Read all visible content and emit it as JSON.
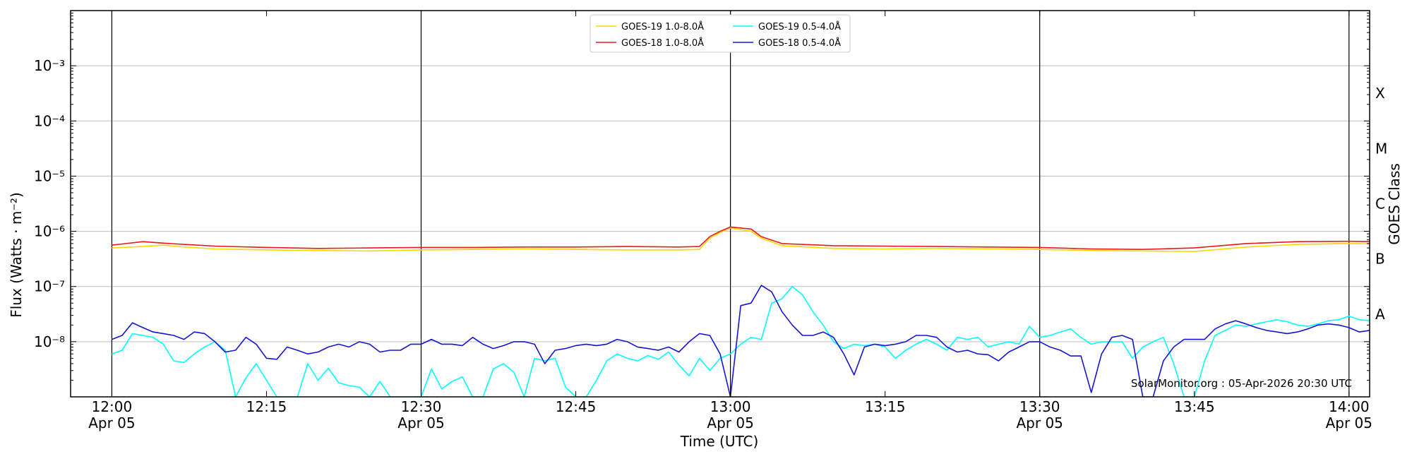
{
  "chart_data": {
    "type": "line",
    "xlabel": "Time (UTC)",
    "ylabel": "Flux (Watts · m⁻²)",
    "ylabel_right": "GOES Class",
    "yscale": "log",
    "xlim": [
      "2026-04-05 11:56",
      "2026-04-05 14:02"
    ],
    "ylim": [
      1e-09,
      0.01
    ],
    "x_ticks": [
      {
        "time": "12:00",
        "label": "12:00",
        "sublabel": "Apr 05",
        "major": true
      },
      {
        "time": "12:15",
        "label": "12:15",
        "sublabel": "",
        "major": false
      },
      {
        "time": "12:30",
        "label": "12:30",
        "sublabel": "Apr 05",
        "major": true
      },
      {
        "time": "12:45",
        "label": "12:45",
        "sublabel": "",
        "major": false
      },
      {
        "time": "13:00",
        "label": "13:00",
        "sublabel": "Apr 05",
        "major": true
      },
      {
        "time": "13:15",
        "label": "13:15",
        "sublabel": "",
        "major": false
      },
      {
        "time": "13:30",
        "label": "13:30",
        "sublabel": "Apr 05",
        "major": true
      },
      {
        "time": "13:45",
        "label": "13:45",
        "sublabel": "",
        "major": false
      },
      {
        "time": "14:00",
        "label": "14:00",
        "sublabel": "Apr 05",
        "major": true
      }
    ],
    "y_ticks": [
      {
        "exp": -8,
        "label": "10⁻⁸"
      },
      {
        "exp": -7,
        "label": "10⁻⁷"
      },
      {
        "exp": -6,
        "label": "10⁻⁶"
      },
      {
        "exp": -5,
        "label": "10⁻⁵"
      },
      {
        "exp": -4,
        "label": "10⁻⁴"
      },
      {
        "exp": -3,
        "label": "10⁻³"
      }
    ],
    "class_ticks": [
      {
        "label": "A",
        "at_exp": -7.5
      },
      {
        "label": "B",
        "at_exp": -6.5
      },
      {
        "label": "C",
        "at_exp": -5.5
      },
      {
        "label": "M",
        "at_exp": -4.5
      },
      {
        "label": "X",
        "at_exp": -3.5
      }
    ],
    "grid": "horizontal at decades; vertical lines at major ticks",
    "legend": {
      "position": "top-center",
      "columns": 2
    },
    "credit": "SolarMonitor.org : 05-Apr-2026 20:30 UTC",
    "series": [
      {
        "name": "GOES-19 1.0-8.0Å",
        "color": "#FFD700",
        "t": [
          0,
          2,
          5,
          7,
          10,
          15,
          20,
          25,
          30,
          35,
          40,
          45,
          50,
          55,
          57,
          58,
          59,
          60,
          62,
          63,
          65,
          70,
          75,
          80,
          85,
          90,
          95,
          100,
          105,
          110,
          115,
          120,
          125
        ],
        "v": [
          5e-07,
          5.2e-07,
          5.6e-07,
          5.2e-07,
          4.8e-07,
          4.6e-07,
          4.5e-07,
          4.4e-07,
          4.6e-07,
          4.7e-07,
          4.8e-07,
          4.7e-07,
          4.6e-07,
          4.6e-07,
          4.7e-07,
          7.5e-07,
          9.5e-07,
          1.15e-06,
          1e-06,
          7.5e-07,
          5.5e-07,
          4.9e-07,
          4.8e-07,
          4.9e-07,
          4.8e-07,
          4.7e-07,
          4.5e-07,
          4.4e-07,
          4.3e-07,
          5.2e-07,
          5.8e-07,
          6e-07,
          5.8e-07
        ]
      },
      {
        "name": "GOES-18 1.0-8.0Å",
        "color": "#E8191B",
        "t": [
          0,
          1,
          3,
          5,
          7,
          10,
          15,
          20,
          25,
          30,
          35,
          40,
          45,
          50,
          55,
          57,
          58,
          59,
          60,
          62,
          63,
          65,
          70,
          75,
          80,
          85,
          90,
          95,
          100,
          105,
          110,
          115,
          120,
          125
        ],
        "v": [
          5.6e-07,
          5.9e-07,
          6.5e-07,
          6.1e-07,
          5.8e-07,
          5.4e-07,
          5.1e-07,
          4.9e-07,
          5e-07,
          5.1e-07,
          5.1e-07,
          5.2e-07,
          5.2e-07,
          5.3e-07,
          5.2e-07,
          5.3e-07,
          8e-07,
          1e-06,
          1.2e-06,
          1.1e-06,
          8e-07,
          6e-07,
          5.5e-07,
          5.4e-07,
          5.3e-07,
          5.2e-07,
          5.1e-07,
          4.8e-07,
          4.7e-07,
          5e-07,
          6e-07,
          6.5e-07,
          6.6e-07,
          6.4e-07
        ]
      },
      {
        "name": "GOES-19 0.5-4.0Å",
        "color": "#00FFFF",
        "t": [
          0,
          1,
          2,
          3,
          4,
          5,
          6,
          7,
          8,
          9,
          10,
          11,
          12,
          13,
          14,
          15,
          16,
          17,
          18,
          19,
          20,
          21,
          22,
          23,
          24,
          25,
          26,
          27,
          28,
          29,
          30,
          31,
          32,
          33,
          34,
          35,
          36,
          37,
          38,
          39,
          40,
          41,
          42,
          43,
          44,
          45,
          46,
          47,
          48,
          49,
          50,
          51,
          52,
          53,
          54,
          55,
          56,
          57,
          58,
          59,
          60,
          61,
          62,
          63,
          64,
          65,
          66,
          67,
          68,
          69,
          70,
          71,
          72,
          73,
          74,
          75,
          76,
          77,
          78,
          79,
          80,
          81,
          82,
          83,
          84,
          85,
          86,
          87,
          88,
          89,
          90,
          91,
          92,
          93,
          94,
          95,
          96,
          97,
          98,
          99,
          100,
          101,
          102,
          103,
          104,
          105,
          106,
          107,
          108,
          109,
          110,
          111,
          112,
          113,
          114,
          115,
          116,
          117,
          118,
          119,
          120,
          121,
          122,
          123,
          124,
          125
        ],
        "v": [
          6e-09,
          7e-09,
          1.4e-08,
          1.3e-08,
          1.2e-08,
          9e-09,
          4.5e-09,
          4.2e-09,
          6e-09,
          8e-09,
          1e-08,
          7e-09,
          1e-09,
          2.2e-09,
          4e-09,
          2e-09,
          1e-09,
          1e-09,
          1e-09,
          4e-09,
          2e-09,
          3.3e-09,
          1.8e-09,
          1.6e-09,
          1.5e-09,
          1e-09,
          1.9e-09,
          1e-09,
          1e-09,
          1e-09,
          1e-09,
          3.2e-09,
          1.4e-09,
          1.9e-09,
          2.3e-09,
          1e-09,
          1e-09,
          3.2e-09,
          4e-09,
          2.8e-09,
          1e-09,
          5e-09,
          4.5e-09,
          5e-09,
          1.5e-09,
          1e-09,
          1e-09,
          2e-09,
          4.5e-09,
          6e-09,
          5e-09,
          4.5e-09,
          5.6e-09,
          4.8e-09,
          6.5e-09,
          3.8e-09,
          2.4e-09,
          5e-09,
          3e-09,
          5e-09,
          6e-09,
          9e-09,
          1.2e-08,
          1.1e-08,
          5e-08,
          6e-08,
          1e-07,
          7e-08,
          3.5e-08,
          2e-08,
          1e-08,
          7.5e-09,
          9e-09,
          8.5e-09,
          9e-09,
          8e-09,
          5e-09,
          7e-09,
          9e-09,
          1.1e-08,
          9e-09,
          7e-09,
          1.2e-08,
          1.1e-08,
          1.2e-08,
          8e-09,
          9e-09,
          1e-08,
          9e-09,
          1.9e-08,
          1.2e-08,
          1.3e-08,
          1.5e-08,
          1.7e-08,
          1.2e-08,
          9e-09,
          1e-08,
          1e-08,
          1e-08,
          5e-09,
          8e-09,
          1e-08,
          1.2e-08,
          4e-09,
          1e-09,
          1e-09,
          4.5e-09,
          1.3e-08,
          1.6e-08,
          2e-08,
          1.9e-08,
          2.1e-08,
          2.3e-08,
          2.5e-08,
          2.3e-08,
          2e-08,
          1.9e-08,
          2.1e-08,
          2.4e-08,
          2.5e-08,
          2.9e-08,
          2.5e-08,
          2.4e-08,
          2.3e-08,
          2.2e-08,
          2.1e-08
        ],
        "floor_note": "values at 1e-9 are below the axis floor"
      },
      {
        "name": "GOES-18 0.5-4.0Å",
        "color": "#1515D6",
        "t": [
          0,
          1,
          2,
          3,
          4,
          5,
          6,
          7,
          8,
          9,
          10,
          11,
          12,
          13,
          14,
          15,
          16,
          17,
          18,
          19,
          20,
          21,
          22,
          23,
          24,
          25,
          26,
          27,
          28,
          29,
          30,
          31,
          32,
          33,
          34,
          35,
          36,
          37,
          38,
          39,
          40,
          41,
          42,
          43,
          44,
          45,
          46,
          47,
          48,
          49,
          50,
          51,
          52,
          53,
          54,
          55,
          56,
          57,
          58,
          59,
          60,
          61,
          62,
          63,
          64,
          65,
          66,
          67,
          68,
          69,
          70,
          71,
          72,
          73,
          74,
          75,
          76,
          77,
          78,
          79,
          80,
          81,
          82,
          83,
          84,
          85,
          86,
          87,
          88,
          89,
          90,
          91,
          92,
          93,
          94,
          95,
          96,
          97,
          98,
          99,
          100,
          101,
          102,
          103,
          104,
          105,
          106,
          107,
          108,
          109,
          110,
          111,
          112,
          113,
          114,
          115,
          116,
          117,
          118,
          119,
          120,
          121,
          122,
          123,
          124,
          125
        ],
        "v": [
          1.1e-08,
          1.3e-08,
          2.2e-08,
          1.8e-08,
          1.5e-08,
          1.4e-08,
          1.3e-08,
          1.1e-08,
          1.5e-08,
          1.4e-08,
          1e-08,
          6.5e-09,
          7e-09,
          1.2e-08,
          9e-09,
          5e-09,
          4.8e-09,
          8e-09,
          7e-09,
          6e-09,
          6.5e-09,
          8e-09,
          9e-09,
          8e-09,
          1e-08,
          9e-09,
          6.5e-09,
          7e-09,
          7e-09,
          9e-09,
          9e-09,
          1.1e-08,
          9e-09,
          9e-09,
          8.5e-09,
          1.2e-08,
          9e-09,
          7.5e-09,
          8.5e-09,
          1e-08,
          1e-08,
          9e-09,
          4e-09,
          7e-09,
          7.5e-09,
          8.5e-09,
          9e-09,
          8.5e-09,
          9e-09,
          1.1e-08,
          1e-08,
          8e-09,
          7.5e-09,
          7e-09,
          8e-09,
          6.5e-09,
          1e-08,
          1.4e-08,
          1.3e-08,
          6e-09,
          1e-09,
          4.5e-08,
          5e-08,
          1.05e-07,
          8e-08,
          3.5e-08,
          2e-08,
          1.3e-08,
          1.3e-08,
          1.5e-08,
          1.2e-08,
          6e-09,
          2.5e-09,
          8e-09,
          9e-09,
          8.5e-09,
          9e-09,
          1e-08,
          1.3e-08,
          1.3e-08,
          1.2e-08,
          8e-09,
          6.5e-09,
          7e-09,
          6e-09,
          5.8e-09,
          4.5e-09,
          6.5e-09,
          8e-09,
          1e-08,
          1e-08,
          8e-09,
          7e-09,
          5.5e-09,
          5.5e-09,
          1.2e-09,
          6e-09,
          1.2e-08,
          1.3e-08,
          1.1e-08,
          1e-09,
          1e-09,
          4.5e-09,
          8e-09,
          1.1e-08,
          1.1e-08,
          1.1e-08,
          1.7e-08,
          2.1e-08,
          2.4e-08,
          2.1e-08,
          1.8e-08,
          1.6e-08,
          1.5e-08,
          1.4e-08,
          1.5e-08,
          1.7e-08,
          2e-08,
          2.1e-08,
          2e-08,
          1.8e-08,
          1.5e-08,
          1.6e-08,
          1.4e-08,
          1.3e-08,
          1.2e-08
        ]
      }
    ]
  }
}
